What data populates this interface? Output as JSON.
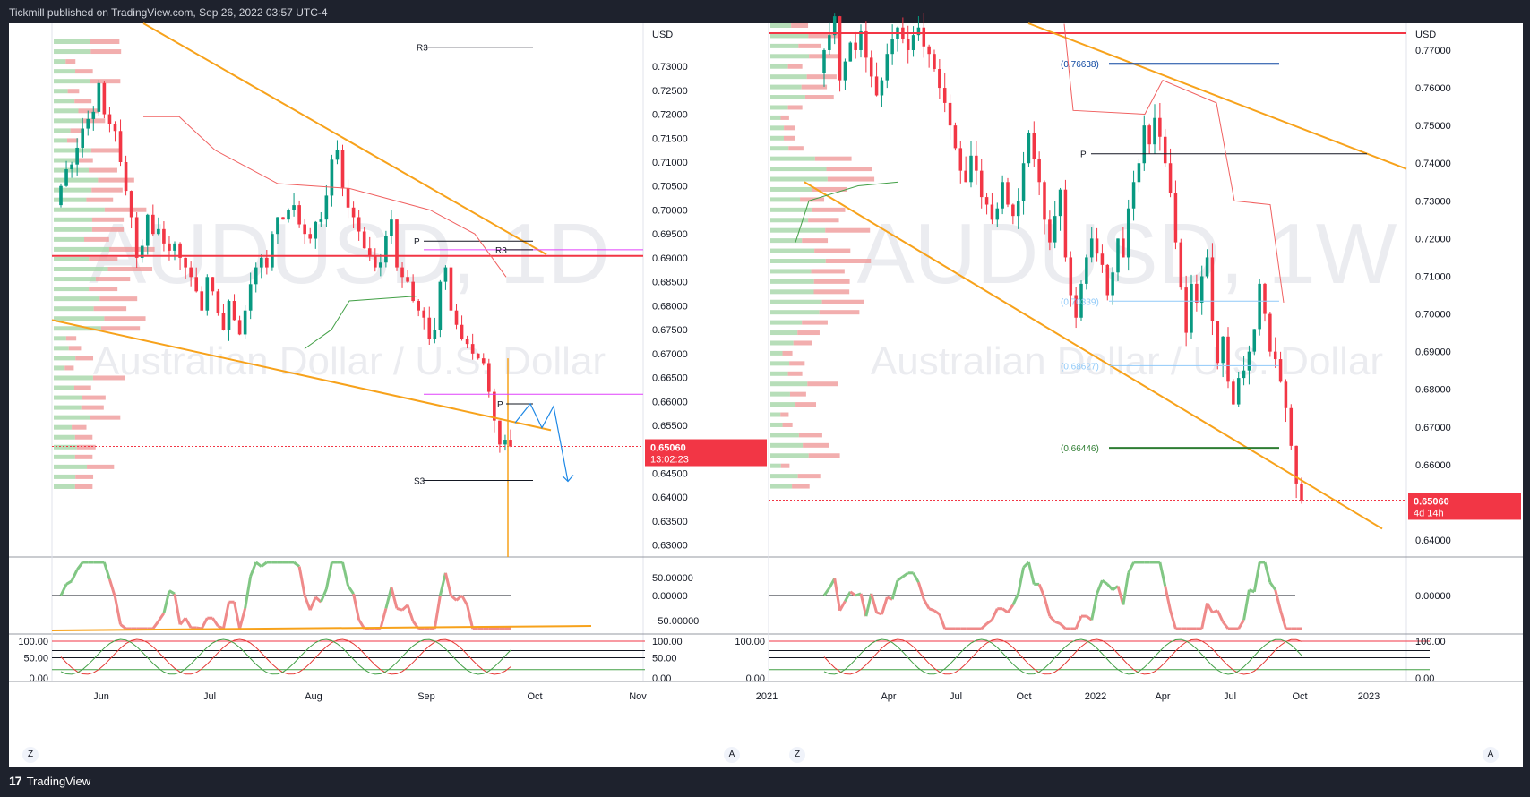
{
  "header": {
    "publisher_text": "Tickmill published on TradingView.com, Sep 26, 2022 03:57 UTC-4"
  },
  "footer": {
    "brand": "TradingView",
    "logo_glyph": "17"
  },
  "buttons": {
    "z_label": "Z",
    "a_label": "A"
  },
  "colors": {
    "up": "#26a69a",
    "up_candle": "#089981",
    "down": "#f23645",
    "orange": "#f7a21b",
    "magenta": "#e040fb",
    "blue": "#1e88e5",
    "navy": "#0d47a1",
    "green_level": "#2e7d32",
    "grid": "#f0f3fa",
    "axis_text": "#131722",
    "rsi_green": "#81c784",
    "rsi_red": "#ef8a8a"
  },
  "chart_data": [
    {
      "type": "candlestick",
      "symbol": "AUDUSD",
      "interval": "1D",
      "watermark_title": "AUDUSD, 1D",
      "watermark_subtitle": "Australian Dollar / U.S. Dollar",
      "currency_label": "USD",
      "y_ticks": [
        "0.73000",
        "0.72500",
        "0.72000",
        "0.71500",
        "0.71000",
        "0.70500",
        "0.70000",
        "0.69500",
        "0.69000",
        "0.68500",
        "0.68000",
        "0.67500",
        "0.67000",
        "0.66500",
        "0.66000",
        "0.65500",
        "0.65000",
        "0.64500",
        "0.64000",
        "0.63500",
        "0.63000"
      ],
      "y_range": [
        0.6275,
        0.7375
      ],
      "x_ticks": [
        "Jun",
        "Jul",
        "Aug",
        "Sep",
        "Oct",
        "Nov"
      ],
      "last_price": "0.65060",
      "countdown": "13:02:23",
      "last_price_value": 0.6506,
      "pivot_labels": {
        "r3_top": "R3",
        "r3_mid": "R3",
        "p_mid": "P",
        "p_low": "P",
        "s3": "S3"
      },
      "pivot_levels": {
        "r3_top": 0.734,
        "r3_mid": 0.6917,
        "p_mid": 0.6935,
        "p_low": 0.6595,
        "s3": 0.6435
      },
      "horizontal_levels": {
        "red_line": 0.6904,
        "magenta_top": 0.6917,
        "magenta_low": 0.6615
      },
      "oscillator_ticks": [
        "50.00000",
        "0.00000",
        "−50.00000"
      ],
      "stoch_ticks": [
        "100.00",
        "50.00",
        "0.00"
      ],
      "closes": [
        0.705,
        0.7085,
        0.7095,
        0.713,
        0.717,
        0.719,
        0.7205,
        0.7265,
        0.72,
        0.718,
        0.7165,
        0.71,
        0.704,
        0.6985,
        0.69,
        0.6925,
        0.699,
        0.695,
        0.696,
        0.693,
        0.6915,
        0.693,
        0.69,
        0.688,
        0.686,
        0.683,
        0.679,
        0.686,
        0.683,
        0.6785,
        0.675,
        0.681,
        0.677,
        0.674,
        0.679,
        0.6845,
        0.688,
        0.69,
        0.688,
        0.695,
        0.6985,
        0.698,
        0.7,
        0.701,
        0.697,
        0.695,
        0.694,
        0.6975,
        0.698,
        0.703,
        0.7105,
        0.7125,
        0.7045,
        0.7005,
        0.6985,
        0.6955,
        0.692,
        0.6905,
        0.688,
        0.689,
        0.6945,
        0.698,
        0.688,
        0.686,
        0.685,
        0.681,
        0.679,
        0.6775,
        0.673,
        0.675,
        0.685,
        0.688,
        0.679,
        0.676,
        0.673,
        0.672,
        0.67,
        0.669,
        0.668,
        0.662,
        0.656,
        0.651,
        0.652,
        0.6506
      ],
      "projection": [
        0.6555,
        0.6595,
        0.6545,
        0.659,
        0.6433
      ]
    },
    {
      "type": "candlestick",
      "symbol": "AUDUSD",
      "interval": "1W",
      "watermark_title": "AUDUSD, 1W",
      "watermark_subtitle": "Australian Dollar / U.S. Dollar",
      "currency_label": "USD",
      "y_ticks": [
        "0.77000",
        "0.76000",
        "0.75000",
        "0.74000",
        "0.73000",
        "0.72000",
        "0.71000",
        "0.70000",
        "0.69000",
        "0.68000",
        "0.67000",
        "0.66000",
        "0.65000",
        "0.64000"
      ],
      "y_range": [
        0.6355,
        0.7795
      ],
      "x_ticks": [
        "2021",
        "Apr",
        "Jul",
        "Oct",
        "2022",
        "Apr",
        "Jul",
        "Oct",
        "2023"
      ],
      "last_price": "0.65060",
      "countdown": "4d 14h",
      "last_price_value": 0.6506,
      "fib_labels": [
        "(0.76638)",
        "(0.70339)",
        "(0.68627)",
        "(0.66446)"
      ],
      "fib_values": [
        0.76638,
        0.70339,
        0.68627,
        0.66446
      ],
      "pivot_labels": {
        "p": "P"
      },
      "pivot_levels": {
        "p": 0.7425
      },
      "horizontal_levels": {
        "red_line": 0.7745
      },
      "oscillator_ticks": [
        "0.00000"
      ],
      "stoch_ticks": [
        "100.00",
        "0.00"
      ],
      "closes": [
        0.77,
        0.774,
        0.779,
        0.762,
        0.767,
        0.772,
        0.77,
        0.775,
        0.768,
        0.763,
        0.758,
        0.762,
        0.769,
        0.773,
        0.776,
        0.773,
        0.77,
        0.774,
        0.776,
        0.771,
        0.769,
        0.765,
        0.76,
        0.756,
        0.75,
        0.744,
        0.738,
        0.735,
        0.742,
        0.738,
        0.731,
        0.729,
        0.725,
        0.728,
        0.735,
        0.729,
        0.726,
        0.73,
        0.74,
        0.748,
        0.741,
        0.735,
        0.725,
        0.719,
        0.726,
        0.733,
        0.715,
        0.705,
        0.699,
        0.708,
        0.715,
        0.72,
        0.716,
        0.713,
        0.705,
        0.711,
        0.72,
        0.715,
        0.728,
        0.735,
        0.74,
        0.75,
        0.745,
        0.752,
        0.747,
        0.74,
        0.732,
        0.719,
        0.707,
        0.695,
        0.708,
        0.703,
        0.71,
        0.715,
        0.698,
        0.687,
        0.694,
        0.682,
        0.676,
        0.683,
        0.685,
        0.69,
        0.696,
        0.708,
        0.7,
        0.69,
        0.688,
        0.682,
        0.675,
        0.665,
        0.655,
        0.6506
      ]
    }
  ]
}
